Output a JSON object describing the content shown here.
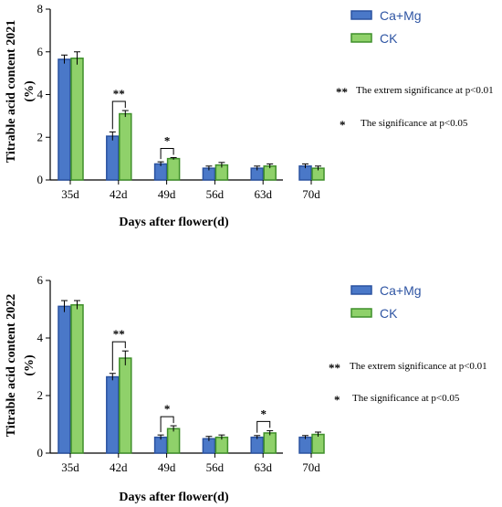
{
  "colors": {
    "series_fill": [
      "#4a78c8",
      "#8fd16a"
    ],
    "series_stroke": [
      "#2a52a0",
      "#3f8f2a"
    ],
    "legend_text": "#2f55a3"
  },
  "chart_data": [
    {
      "type": "bar",
      "title": "",
      "xlabel": "Days after flower(d)",
      "ylabel": "Titrable acid content 2021 (%)",
      "ylabel_lines": [
        "Titrable acid content 2021",
        "(%)"
      ],
      "ylim": [
        0,
        8
      ],
      "yticks": [
        0,
        2,
        4,
        6,
        8
      ],
      "categories": [
        "35d",
        "42d",
        "49d",
        "56d",
        "63d",
        "70d"
      ],
      "series": [
        {
          "name": "Ca+Mg",
          "values": [
            5.65,
            2.05,
            0.75,
            0.55,
            0.55,
            0.65
          ],
          "errors": [
            0.2,
            0.2,
            0.1,
            0.1,
            0.1,
            0.1
          ]
        },
        {
          "name": "CK",
          "values": [
            5.7,
            3.1,
            1.0,
            0.7,
            0.65,
            0.55
          ],
          "errors": [
            0.3,
            0.15,
            0.05,
            0.12,
            0.1,
            0.1
          ]
        }
      ],
      "legend": [
        "Ca+Mg",
        "CK"
      ],
      "legend_position": "top-right",
      "significance": [
        {
          "category": "42d",
          "label": "**"
        },
        {
          "category": "49d",
          "label": "*"
        }
      ],
      "notes": [
        {
          "symbol": "**",
          "text": "The extrem significance at p<0.01"
        },
        {
          "symbol": "*",
          "text": "The significance at p<0.05"
        }
      ]
    },
    {
      "type": "bar",
      "title": "",
      "xlabel": "Days after flower(d)",
      "ylabel": "Titrable acid content 2022 (%)",
      "ylabel_lines": [
        "Titrable acid content 2022",
        "(%)"
      ],
      "ylim": [
        0,
        6
      ],
      "yticks": [
        0,
        2,
        4,
        6
      ],
      "categories": [
        "35d",
        "42d",
        "49d",
        "56d",
        "63d",
        "70d"
      ],
      "series": [
        {
          "name": "Ca+Mg",
          "values": [
            5.1,
            2.65,
            0.55,
            0.5,
            0.55,
            0.55
          ],
          "errors": [
            0.2,
            0.12,
            0.08,
            0.08,
            0.06,
            0.06
          ]
        },
        {
          "name": "CK",
          "values": [
            5.15,
            3.3,
            0.85,
            0.55,
            0.7,
            0.65
          ],
          "errors": [
            0.15,
            0.25,
            0.1,
            0.08,
            0.08,
            0.08
          ]
        }
      ],
      "legend": [
        "Ca+Mg",
        "CK"
      ],
      "legend_position": "top-right",
      "significance": [
        {
          "category": "42d",
          "label": "**"
        },
        {
          "category": "49d",
          "label": "*"
        },
        {
          "category": "63d",
          "label": "*"
        }
      ],
      "notes": [
        {
          "symbol": "**",
          "text": "The extrem significance at p<0.01"
        },
        {
          "symbol": "*",
          "text": "The significance at p<0.05"
        }
      ]
    }
  ]
}
